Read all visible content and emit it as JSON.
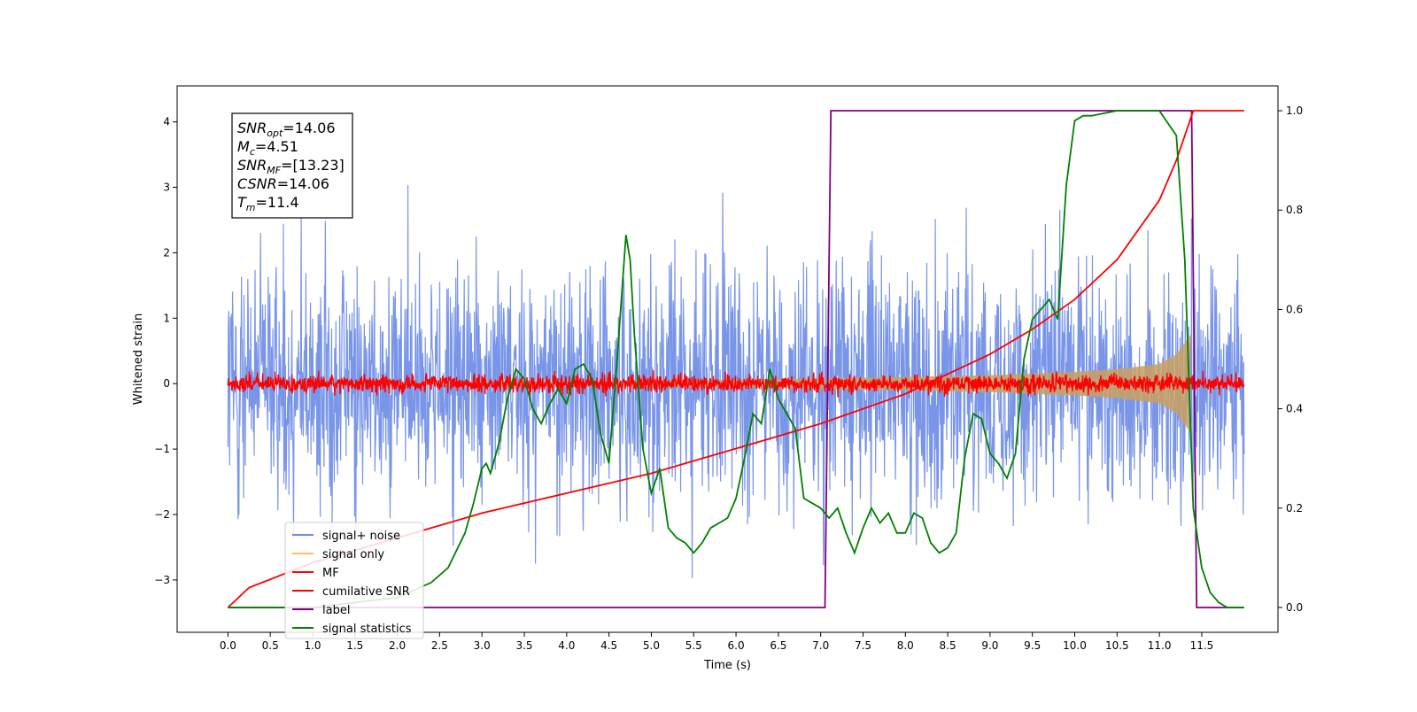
{
  "chart_data": {
    "type": "line",
    "title": "",
    "xlabel": "Time (s)",
    "ylabel": "Whitened strain",
    "xlim": [
      -0.6,
      12.4
    ],
    "ylim": [
      -3.8,
      4.55
    ],
    "y2lim": [
      -0.05,
      1.05
    ],
    "xticks": [
      "0.0",
      "0.5",
      "1.0",
      "1.5",
      "2.0",
      "2.5",
      "3.0",
      "3.5",
      "4.0",
      "4.5",
      "5.0",
      "5.5",
      "6.0",
      "6.5",
      "7.0",
      "7.5",
      "8.0",
      "8.5",
      "9.0",
      "9.5",
      "10.0",
      "10.5",
      "11.0",
      "11.5"
    ],
    "yticks": [
      "−3",
      "−2",
      "−1",
      "0",
      "1",
      "2",
      "3",
      "4"
    ],
    "y2ticks": [
      "0.0",
      "0.2",
      "0.4",
      "0.6",
      "0.8",
      "1.0"
    ],
    "grid": false,
    "legend_position": "lower-left",
    "annotation": [
      {
        "sym": "SNR",
        "sub": "opt",
        "eq": "=14.06"
      },
      {
        "sym": "M",
        "sub": "c",
        "eq": "=4.51"
      },
      {
        "sym": "SNR",
        "sub": "MF",
        "eq": "=[13.23]"
      },
      {
        "sym": "CSNR",
        "sub": "",
        "eq": "=14.06"
      },
      {
        "sym": "T",
        "sub": "m",
        "eq": "=11.4"
      }
    ],
    "series": [
      {
        "name": "signal+ noise",
        "color": "#6a8ae6",
        "axis": "left",
        "style": "noise",
        "x_range": [
          0,
          12
        ],
        "std": 0.9
      },
      {
        "name": "signal only",
        "color": "#c9a060",
        "axis": "left",
        "style": "chirp_envelope",
        "x": [
          0,
          2,
          4,
          6,
          7,
          8,
          9,
          10,
          10.5,
          11,
          11.2,
          11.37
        ],
        "envelope": [
          0,
          0.02,
          0.04,
          0.06,
          0.08,
          0.1,
          0.13,
          0.18,
          0.22,
          0.3,
          0.45,
          0.75
        ]
      },
      {
        "name": "MF",
        "color": "#ff0000",
        "axis": "left",
        "style": "noise",
        "x_range": [
          0,
          12
        ],
        "std": 0.07
      },
      {
        "name": "cumilative SNR",
        "color": "#ff0000",
        "axis": "right",
        "x": [
          0,
          0.25,
          1,
          2,
          3,
          4,
          5,
          6,
          7,
          8,
          9,
          9.5,
          10,
          10.5,
          11,
          11.2,
          11.4,
          12
        ],
        "values": [
          0,
          0.04,
          0.09,
          0.14,
          0.19,
          0.23,
          0.27,
          0.32,
          0.37,
          0.43,
          0.51,
          0.56,
          0.62,
          0.7,
          0.82,
          0.9,
          1.0,
          1.0
        ]
      },
      {
        "name": "label",
        "color": "#800080",
        "axis": "right",
        "x": [
          0,
          7.05,
          7.12,
          11.38,
          11.44,
          11.5,
          12
        ],
        "values": [
          0,
          0,
          1,
          1,
          0,
          0,
          0
        ]
      },
      {
        "name": "signal statistics",
        "color": "#008000",
        "axis": "right",
        "x": [
          0,
          1,
          2,
          2.4,
          2.6,
          2.8,
          2.9,
          3.0,
          3.05,
          3.1,
          3.2,
          3.3,
          3.4,
          3.5,
          3.6,
          3.7,
          3.8,
          3.9,
          4.0,
          4.1,
          4.2,
          4.3,
          4.4,
          4.5,
          4.6,
          4.7,
          4.75,
          4.8,
          4.9,
          5.0,
          5.1,
          5.2,
          5.3,
          5.4,
          5.5,
          5.6,
          5.7,
          5.8,
          5.9,
          6.0,
          6.1,
          6.2,
          6.3,
          6.4,
          6.5,
          6.6,
          6.7,
          6.8,
          6.9,
          7.0,
          7.1,
          7.2,
          7.3,
          7.4,
          7.5,
          7.6,
          7.7,
          7.8,
          7.9,
          8.0,
          8.1,
          8.2,
          8.3,
          8.4,
          8.5,
          8.6,
          8.7,
          8.8,
          8.9,
          9.0,
          9.1,
          9.2,
          9.3,
          9.4,
          9.5,
          9.6,
          9.7,
          9.8,
          9.9,
          10.0,
          10.1,
          10.2,
          10.5,
          11.0,
          11.2,
          11.3,
          11.4,
          11.5,
          11.6,
          11.7,
          11.8,
          11.9,
          12.0
        ],
        "values": [
          0,
          0.0,
          0.02,
          0.05,
          0.08,
          0.15,
          0.21,
          0.28,
          0.29,
          0.27,
          0.33,
          0.42,
          0.48,
          0.46,
          0.4,
          0.37,
          0.41,
          0.44,
          0.41,
          0.48,
          0.49,
          0.46,
          0.35,
          0.29,
          0.51,
          0.75,
          0.7,
          0.55,
          0.32,
          0.23,
          0.28,
          0.16,
          0.14,
          0.13,
          0.11,
          0.13,
          0.16,
          0.17,
          0.18,
          0.22,
          0.3,
          0.39,
          0.37,
          0.48,
          0.42,
          0.39,
          0.36,
          0.22,
          0.21,
          0.2,
          0.18,
          0.2,
          0.15,
          0.11,
          0.16,
          0.2,
          0.17,
          0.19,
          0.15,
          0.15,
          0.19,
          0.18,
          0.13,
          0.11,
          0.12,
          0.15,
          0.3,
          0.39,
          0.38,
          0.31,
          0.29,
          0.26,
          0.31,
          0.5,
          0.58,
          0.6,
          0.62,
          0.58,
          0.85,
          0.98,
          0.99,
          0.99,
          1.0,
          1.0,
          0.95,
          0.7,
          0.2,
          0.08,
          0.03,
          0.01,
          0.0,
          0.0,
          0.0
        ]
      }
    ]
  }
}
